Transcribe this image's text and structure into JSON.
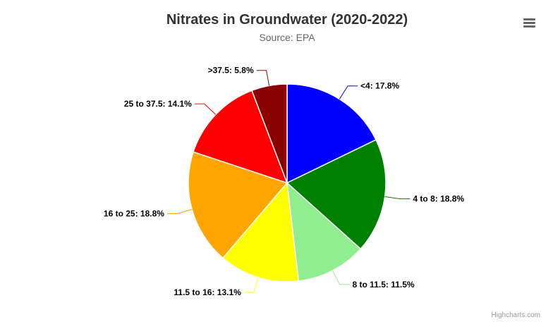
{
  "chart_data": {
    "type": "pie",
    "title": "Nitrates in Groundwater (2020-2022)",
    "subtitle": "Source: EPA",
    "slices": [
      {
        "name": "<4",
        "value": 17.8,
        "color": "#0000ff"
      },
      {
        "name": "4 to 8",
        "value": 18.8,
        "color": "#008000"
      },
      {
        "name": "8 to 11.5",
        "value": 11.5,
        "color": "#90ee90"
      },
      {
        "name": "11.5 to 16",
        "value": 13.1,
        "color": "#ffff00"
      },
      {
        "name": "16 to 25",
        "value": 18.8,
        "color": "#ffa500"
      },
      {
        "name": "25 to 37.5",
        "value": 14.1,
        "color": "#ff0000"
      },
      {
        "name": ">37.5",
        "value": 5.8,
        "color": "#8b0000"
      }
    ],
    "unit": "%"
  },
  "credits": "Highcharts.com",
  "menu": {
    "icon": "hamburger-menu-icon"
  }
}
